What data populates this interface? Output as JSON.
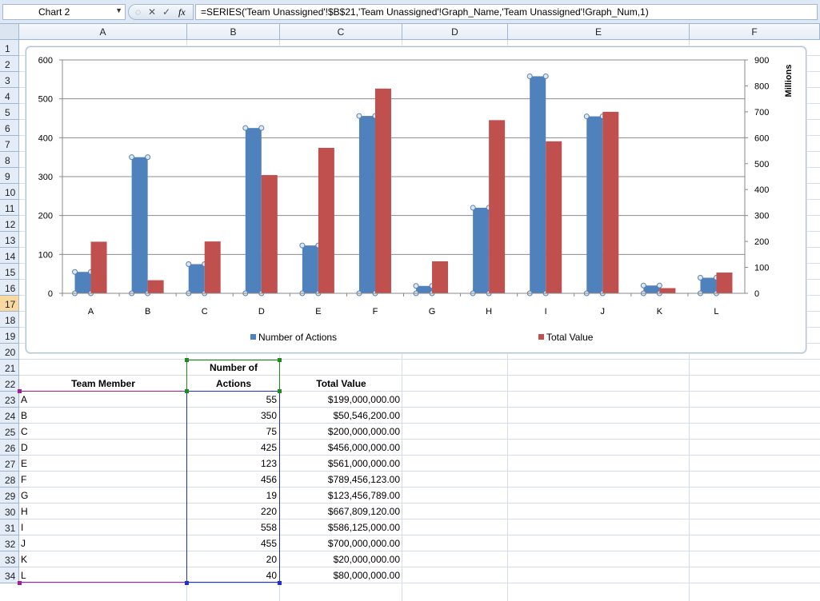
{
  "name_box": "Chart 2",
  "formula": "=SERIES('Team Unassigned'!$B$21,'Team Unassigned'!Graph_Name,'Team Unassigned'!Graph_Num,1)",
  "formula_buttons": {
    "cancel": "✕",
    "enter": "✓",
    "fx": "fx"
  },
  "columns": [
    "A",
    "B",
    "C",
    "D",
    "E",
    "F"
  ],
  "rows": [
    "1",
    "2",
    "3",
    "4",
    "5",
    "6",
    "7",
    "8",
    "9",
    "10",
    "11",
    "12",
    "13",
    "14",
    "15",
    "16",
    "17",
    "18",
    "19",
    "20",
    "21",
    "22",
    "23",
    "24",
    "25",
    "26",
    "27",
    "28",
    "29",
    "30",
    "31",
    "32",
    "33",
    "34"
  ],
  "selected_row": "17",
  "table": {
    "header_member": "Team Member",
    "header_actions_1": "Number of",
    "header_actions_2": "Actions",
    "header_value": "Total Value",
    "rows": [
      {
        "member": "A",
        "actions": "55",
        "value": "$199,000,000.00"
      },
      {
        "member": "B",
        "actions": "350",
        "value": "$50,546,200.00"
      },
      {
        "member": "C",
        "actions": "75",
        "value": "$200,000,000.00"
      },
      {
        "member": "D",
        "actions": "425",
        "value": "$456,000,000.00"
      },
      {
        "member": "E",
        "actions": "123",
        "value": "$561,000,000.00"
      },
      {
        "member": "F",
        "actions": "456",
        "value": "$789,456,123.00"
      },
      {
        "member": "G",
        "actions": "19",
        "value": "$123,456,789.00"
      },
      {
        "member": "H",
        "actions": "220",
        "value": "$667,809,120.00"
      },
      {
        "member": "I",
        "actions": "558",
        "value": "$586,125,000.00"
      },
      {
        "member": "J",
        "actions": "455",
        "value": "$700,000,000.00"
      },
      {
        "member": "K",
        "actions": "20",
        "value": "$20,000,000.00"
      },
      {
        "member": "L",
        "actions": "40",
        "value": "$80,000,000.00"
      }
    ]
  },
  "chart_data": {
    "type": "bar",
    "title": "",
    "categories": [
      "A",
      "B",
      "C",
      "D",
      "E",
      "F",
      "G",
      "H",
      "I",
      "J",
      "K",
      "L"
    ],
    "series": [
      {
        "name": "Number of Actions",
        "axis": "left",
        "color": "#4f81bd",
        "values": [
          55,
          350,
          75,
          425,
          123,
          456,
          19,
          220,
          558,
          455,
          20,
          40
        ]
      },
      {
        "name": "Total Value",
        "axis": "right",
        "color": "#c0504d",
        "values": [
          199,
          50.5462,
          200,
          456,
          561,
          789.456123,
          123.456789,
          667.80912,
          586.125,
          700,
          20,
          80
        ]
      }
    ],
    "ylim": [
      0,
      600
    ],
    "y_ticks": [
      "0",
      "100",
      "200",
      "300",
      "400",
      "500",
      "600"
    ],
    "y2lim": [
      0,
      900
    ],
    "y2_ticks": [
      "0",
      "100",
      "200",
      "300",
      "400",
      "500",
      "600",
      "700",
      "800",
      "900"
    ],
    "y2label": "Millions",
    "grid": true,
    "legend": "bottom"
  }
}
